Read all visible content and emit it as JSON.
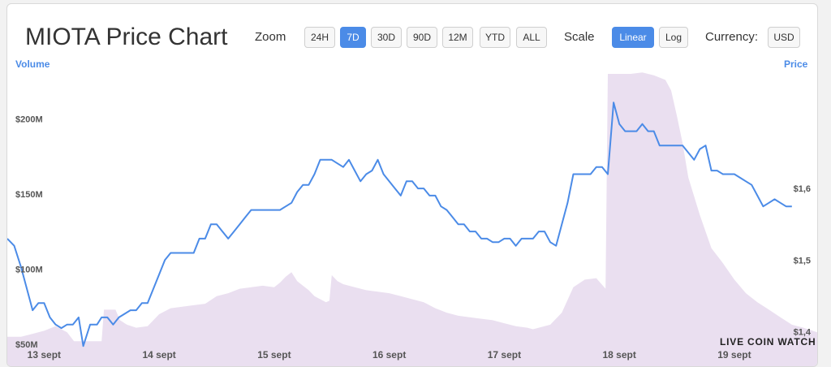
{
  "title": "MIOTA Price Chart",
  "zoom": {
    "label": "Zoom",
    "options": [
      "24H",
      "7D",
      "30D",
      "90D",
      "12M",
      "YTD",
      "ALL"
    ],
    "active": "7D"
  },
  "scale": {
    "label": "Scale",
    "options": [
      "Linear",
      "Log"
    ],
    "active": "Linear"
  },
  "currency": {
    "label": "Currency:",
    "value": "USD"
  },
  "watermark": "LIVE COIN WATCH",
  "chart_data": {
    "type": "line",
    "title": "MIOTA Price Chart",
    "xlabel": "",
    "x_tick_labels": [
      "13 sept",
      "14 sept",
      "15 sept",
      "16 sept",
      "17 sept",
      "18 sept",
      "19 sept"
    ],
    "x_range": [
      12.68,
      19.72
    ],
    "left_axis": {
      "label": "Volume",
      "ticks": [
        "$50M",
        "$100M",
        "$150M",
        "$200M"
      ],
      "range": [
        50,
        230
      ]
    },
    "right_axis": {
      "label": "Price",
      "ticks": [
        "$1,4",
        "$1,5",
        "$1,6"
      ],
      "range": [
        1.37,
        1.76
      ]
    },
    "legend": "none",
    "grid": false,
    "colors": {
      "price": "#4b8be7",
      "volume": "#eadff0"
    },
    "series": [
      {
        "name": "Price",
        "axis": "right",
        "points": [
          [
            12.68,
            1.53
          ],
          [
            12.74,
            1.52
          ],
          [
            12.8,
            1.49
          ],
          [
            12.85,
            1.46
          ],
          [
            12.9,
            1.43
          ],
          [
            12.95,
            1.44
          ],
          [
            13.0,
            1.44
          ],
          [
            13.05,
            1.42
          ],
          [
            13.1,
            1.41
          ],
          [
            13.15,
            1.405
          ],
          [
            13.2,
            1.41
          ],
          [
            13.25,
            1.41
          ],
          [
            13.3,
            1.42
          ],
          [
            13.34,
            1.38
          ],
          [
            13.4,
            1.41
          ],
          [
            13.46,
            1.41
          ],
          [
            13.5,
            1.42
          ],
          [
            13.55,
            1.42
          ],
          [
            13.6,
            1.41
          ],
          [
            13.65,
            1.42
          ],
          [
            13.7,
            1.425
          ],
          [
            13.75,
            1.43
          ],
          [
            13.8,
            1.43
          ],
          [
            13.85,
            1.44
          ],
          [
            13.9,
            1.44
          ],
          [
            13.95,
            1.46
          ],
          [
            14.0,
            1.48
          ],
          [
            14.05,
            1.5
          ],
          [
            14.1,
            1.51
          ],
          [
            14.15,
            1.51
          ],
          [
            14.2,
            1.51
          ],
          [
            14.25,
            1.51
          ],
          [
            14.3,
            1.51
          ],
          [
            14.35,
            1.53
          ],
          [
            14.4,
            1.53
          ],
          [
            14.45,
            1.55
          ],
          [
            14.5,
            1.55
          ],
          [
            14.55,
            1.54
          ],
          [
            14.6,
            1.53
          ],
          [
            14.65,
            1.54
          ],
          [
            14.7,
            1.55
          ],
          [
            14.75,
            1.56
          ],
          [
            14.8,
            1.57
          ],
          [
            14.85,
            1.57
          ],
          [
            14.9,
            1.57
          ],
          [
            14.95,
            1.57
          ],
          [
            15.0,
            1.57
          ],
          [
            15.05,
            1.57
          ],
          [
            15.1,
            1.575
          ],
          [
            15.15,
            1.58
          ],
          [
            15.2,
            1.595
          ],
          [
            15.25,
            1.605
          ],
          [
            15.3,
            1.605
          ],
          [
            15.35,
            1.62
          ],
          [
            15.4,
            1.64
          ],
          [
            15.45,
            1.64
          ],
          [
            15.5,
            1.64
          ],
          [
            15.55,
            1.635
          ],
          [
            15.6,
            1.63
          ],
          [
            15.65,
            1.64
          ],
          [
            15.7,
            1.625
          ],
          [
            15.75,
            1.61
          ],
          [
            15.8,
            1.62
          ],
          [
            15.85,
            1.625
          ],
          [
            15.9,
            1.64
          ],
          [
            15.95,
            1.62
          ],
          [
            16.0,
            1.61
          ],
          [
            16.05,
            1.6
          ],
          [
            16.1,
            1.59
          ],
          [
            16.15,
            1.61
          ],
          [
            16.2,
            1.61
          ],
          [
            16.25,
            1.6
          ],
          [
            16.3,
            1.6
          ],
          [
            16.35,
            1.59
          ],
          [
            16.4,
            1.59
          ],
          [
            16.45,
            1.575
          ],
          [
            16.5,
            1.57
          ],
          [
            16.55,
            1.56
          ],
          [
            16.6,
            1.55
          ],
          [
            16.65,
            1.55
          ],
          [
            16.7,
            1.54
          ],
          [
            16.75,
            1.54
          ],
          [
            16.8,
            1.53
          ],
          [
            16.85,
            1.53
          ],
          [
            16.9,
            1.525
          ],
          [
            16.95,
            1.525
          ],
          [
            17.0,
            1.53
          ],
          [
            17.05,
            1.53
          ],
          [
            17.1,
            1.52
          ],
          [
            17.15,
            1.53
          ],
          [
            17.2,
            1.53
          ],
          [
            17.25,
            1.53
          ],
          [
            17.3,
            1.54
          ],
          [
            17.35,
            1.54
          ],
          [
            17.4,
            1.525
          ],
          [
            17.45,
            1.52
          ],
          [
            17.5,
            1.55
          ],
          [
            17.55,
            1.58
          ],
          [
            17.6,
            1.62
          ],
          [
            17.65,
            1.62
          ],
          [
            17.7,
            1.62
          ],
          [
            17.75,
            1.62
          ],
          [
            17.8,
            1.63
          ],
          [
            17.85,
            1.63
          ],
          [
            17.9,
            1.62
          ],
          [
            17.95,
            1.72
          ],
          [
            18.0,
            1.69
          ],
          [
            18.05,
            1.68
          ],
          [
            18.1,
            1.68
          ],
          [
            18.15,
            1.68
          ],
          [
            18.2,
            1.69
          ],
          [
            18.25,
            1.68
          ],
          [
            18.3,
            1.68
          ],
          [
            18.35,
            1.66
          ],
          [
            18.4,
            1.66
          ],
          [
            18.45,
            1.66
          ],
          [
            18.5,
            1.66
          ],
          [
            18.55,
            1.66
          ],
          [
            18.6,
            1.65
          ],
          [
            18.65,
            1.64
          ],
          [
            18.7,
            1.655
          ],
          [
            18.75,
            1.66
          ],
          [
            18.8,
            1.625
          ],
          [
            18.85,
            1.625
          ],
          [
            18.9,
            1.62
          ],
          [
            18.95,
            1.62
          ],
          [
            19.0,
            1.62
          ],
          [
            19.05,
            1.615
          ],
          [
            19.1,
            1.61
          ],
          [
            19.15,
            1.605
          ],
          [
            19.2,
            1.59
          ],
          [
            19.25,
            1.575
          ],
          [
            19.3,
            1.58
          ],
          [
            19.35,
            1.585
          ],
          [
            19.4,
            1.58
          ],
          [
            19.45,
            1.575
          ],
          [
            19.5,
            1.575
          ]
        ]
      },
      {
        "name": "Volume",
        "axis": "left",
        "type": "area",
        "points": [
          [
            12.68,
            55
          ],
          [
            12.8,
            55
          ],
          [
            12.9,
            57
          ],
          [
            13.0,
            59
          ],
          [
            13.1,
            62
          ],
          [
            13.2,
            58
          ],
          [
            13.26,
            52
          ],
          [
            13.5,
            52
          ],
          [
            13.52,
            73
          ],
          [
            13.62,
            73
          ],
          [
            13.66,
            66
          ],
          [
            13.72,
            63
          ],
          [
            13.8,
            61
          ],
          [
            13.9,
            62
          ],
          [
            14.0,
            70
          ],
          [
            14.1,
            74
          ],
          [
            14.2,
            75
          ],
          [
            14.3,
            76
          ],
          [
            14.4,
            77
          ],
          [
            14.5,
            82
          ],
          [
            14.6,
            84
          ],
          [
            14.7,
            87
          ],
          [
            14.8,
            88
          ],
          [
            14.9,
            89
          ],
          [
            15.0,
            88
          ],
          [
            15.05,
            91
          ],
          [
            15.1,
            95
          ],
          [
            15.15,
            98
          ],
          [
            15.2,
            92
          ],
          [
            15.25,
            89
          ],
          [
            15.3,
            86
          ],
          [
            15.35,
            82
          ],
          [
            15.4,
            80
          ],
          [
            15.45,
            78
          ],
          [
            15.48,
            79
          ],
          [
            15.5,
            96
          ],
          [
            15.55,
            92
          ],
          [
            15.6,
            90
          ],
          [
            15.7,
            88
          ],
          [
            15.8,
            86
          ],
          [
            15.9,
            85
          ],
          [
            16.0,
            84
          ],
          [
            16.1,
            82
          ],
          [
            16.2,
            80
          ],
          [
            16.3,
            78
          ],
          [
            16.4,
            74
          ],
          [
            16.5,
            71
          ],
          [
            16.6,
            69
          ],
          [
            16.7,
            68
          ],
          [
            16.8,
            67
          ],
          [
            16.9,
            66
          ],
          [
            17.0,
            64
          ],
          [
            17.1,
            62
          ],
          [
            17.2,
            61
          ],
          [
            17.25,
            60
          ],
          [
            17.3,
            61
          ],
          [
            17.4,
            63
          ],
          [
            17.5,
            71
          ],
          [
            17.6,
            88
          ],
          [
            17.7,
            93
          ],
          [
            17.8,
            94
          ],
          [
            17.88,
            87
          ],
          [
            17.9,
            230
          ],
          [
            18.0,
            230
          ],
          [
            18.1,
            230
          ],
          [
            18.2,
            231
          ],
          [
            18.3,
            229
          ],
          [
            18.4,
            226
          ],
          [
            18.45,
            219
          ],
          [
            18.5,
            202
          ],
          [
            18.55,
            184
          ],
          [
            18.6,
            161
          ],
          [
            18.7,
            136
          ],
          [
            18.8,
            114
          ],
          [
            18.9,
            104
          ],
          [
            19.0,
            93
          ],
          [
            19.1,
            84
          ],
          [
            19.2,
            78
          ],
          [
            19.3,
            73
          ],
          [
            19.4,
            68
          ],
          [
            19.5,
            63
          ],
          [
            19.6,
            61
          ],
          [
            19.72,
            58
          ]
        ]
      }
    ]
  }
}
